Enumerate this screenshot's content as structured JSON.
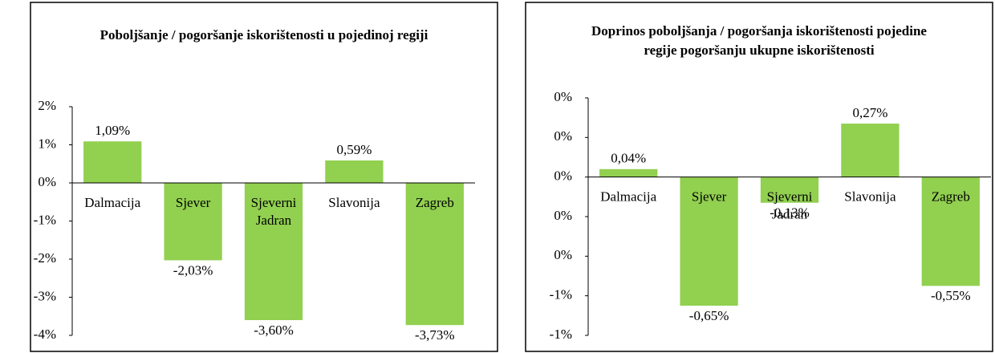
{
  "chart_data": [
    {
      "type": "bar",
      "title": "Poboljšanje / pogoršanje iskorištenosti u pojedinoj regiji",
      "categories": [
        "Dalmacija",
        "Sjever",
        "Sjeverni Jadran",
        "Slavonija",
        "Zagreb"
      ],
      "values": [
        1.09,
        -2.03,
        -3.6,
        0.59,
        -3.73
      ],
      "value_labels": [
        "1,09%",
        "-2,03%",
        "-3,60%",
        "0,59%",
        "-3,73%"
      ],
      "color": "#92d050",
      "ylim": [
        -4,
        2
      ],
      "yticks": [
        {
          "value": 2,
          "label": "2%"
        },
        {
          "value": 1,
          "label": "1%"
        },
        {
          "value": 0,
          "label": "0%"
        },
        {
          "value": -1,
          "label": "-1%"
        },
        {
          "value": -2,
          "label": "-2%"
        },
        {
          "value": -3,
          "label": "-3%"
        },
        {
          "value": -4,
          "label": "-4%"
        }
      ],
      "grid": false
    },
    {
      "type": "bar",
      "title": "Doprinos poboljšanja / pogoršanja iskorištenosti pojedine regije pogoršanju ukupne iskorištenosti",
      "categories": [
        "Dalmacija",
        "Sjever",
        "Sjeverni Jadran",
        "Slavonija",
        "Zagreb"
      ],
      "values": [
        0.04,
        -0.65,
        -0.13,
        0.27,
        -0.55
      ],
      "value_labels": [
        "0,04%",
        "-0,65%",
        "-0,13%",
        "0,27%",
        "-0,55%"
      ],
      "color": "#92d050",
      "ylim": [
        -0.8,
        0.4
      ],
      "yticks": [
        {
          "value": 0.4,
          "label": "0%"
        },
        {
          "value": 0.2,
          "label": "0%"
        },
        {
          "value": 0,
          "label": "0%"
        },
        {
          "value": -0.2,
          "label": "0%"
        },
        {
          "value": -0.4,
          "label": "0%"
        },
        {
          "value": -0.6,
          "label": "-1%"
        },
        {
          "value": -0.8,
          "label": "-1%"
        }
      ],
      "grid": false
    }
  ]
}
